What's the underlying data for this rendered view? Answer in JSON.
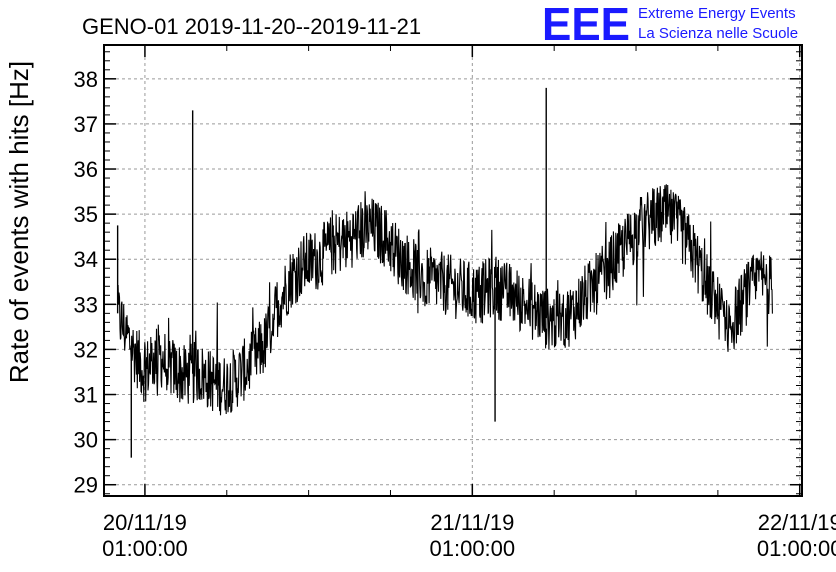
{
  "chart_data": {
    "type": "line",
    "title": "GENO-01 2019-11-20--2019-11-21",
    "ylabel": "Rate of events with hits [Hz]",
    "xlabel": "",
    "ylim": [
      28.75,
      38.75
    ],
    "yticks": [
      29,
      30,
      31,
      32,
      33,
      34,
      35,
      36,
      37,
      38
    ],
    "yticklabels": [
      "29",
      "30",
      "31",
      "32",
      "33",
      "34",
      "35",
      "36",
      "37",
      "38"
    ],
    "xlim": [
      "2019-11-19T22:00:00",
      "2019-11-22T01:10:00"
    ],
    "xticks": [
      {
        "date": "20/11/19",
        "time": "01:00:00",
        "t": "2019-11-20T01:00:00"
      },
      {
        "date": "21/11/19",
        "time": "01:00:00",
        "t": "2019-11-21T01:00:00"
      },
      {
        "date": "22/11/19",
        "time": "01:00:00",
        "t": "2019-11-22T01:00:00"
      }
    ],
    "grid": true,
    "line_color": "#000000",
    "series": [
      {
        "x_start": "2019-11-19T23:00:00",
        "x_end": "2019-11-21T23:00:00",
        "values": [
          32.8,
          32.1,
          31.5,
          31.9,
          31.6,
          31.4,
          31.5,
          31.3,
          31.2,
          31.4,
          31.7,
          32.1,
          33.0,
          33.6,
          33.9,
          34.0,
          34.3,
          34.4,
          34.6,
          34.7,
          34.5,
          34.1,
          33.8,
          33.6,
          33.5,
          33.4,
          33.3,
          33.2,
          33.4,
          33.3,
          33.1,
          32.9,
          32.7,
          32.6,
          32.8,
          33.2,
          33.5,
          33.9,
          34.3,
          34.7,
          34.9,
          35.0,
          34.7,
          34.2,
          33.5,
          32.9,
          32.6,
          33.2,
          33.6,
          33.4
        ],
        "noise_amplitude": 0.7,
        "spikes": [
          {
            "t": "2019-11-19T23:00:00",
            "value": 34.75
          },
          {
            "t": "2019-11-20T04:30:00",
            "value": 37.3
          },
          {
            "t": "2019-11-21T06:25:00",
            "value": 37.8
          },
          {
            "t": "2019-11-20T00:00:00",
            "value": 29.6
          },
          {
            "t": "2019-11-21T02:40:00",
            "value": 30.4
          }
        ]
      }
    ]
  },
  "logo": {
    "text": "EEE",
    "line1": "Extreme Energy Events",
    "line2": "La Scienza nelle Scuole",
    "color": "#1a1aff"
  }
}
